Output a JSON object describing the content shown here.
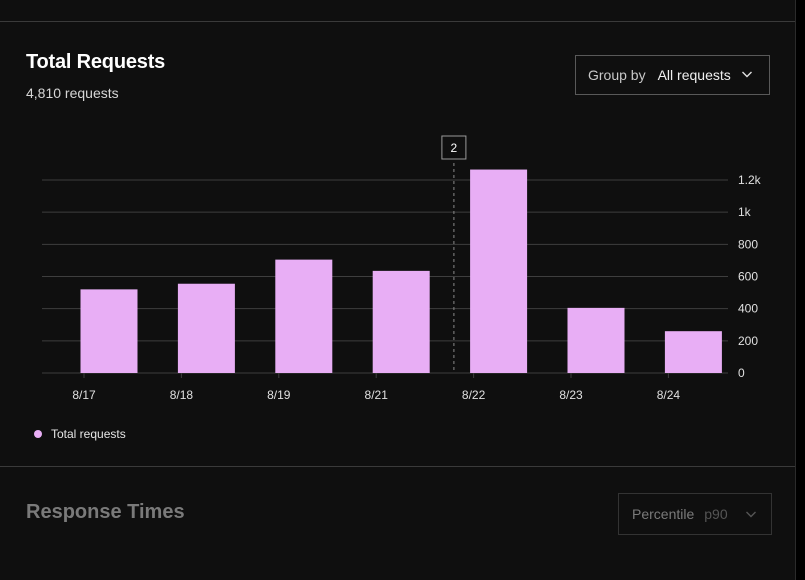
{
  "requests_panel": {
    "title": "Total Requests",
    "subtitle": "4,810 requests",
    "group_by": {
      "label": "Group by",
      "value": "All requests"
    }
  },
  "response_panel": {
    "title": "Response Times",
    "percentile": {
      "label": "Percentile",
      "value": "p90"
    }
  },
  "chart_data": {
    "type": "bar",
    "categories": [
      "8/17",
      "8/18",
      "8/19",
      "8/21",
      "8/22",
      "8/23",
      "8/24"
    ],
    "series": [
      {
        "name": "Total requests",
        "values": [
          520,
          555,
          705,
          635,
          1265,
          405,
          260
        ]
      }
    ],
    "ylim": [
      0,
      1200
    ],
    "y_ticks": [
      {
        "value": 0,
        "label": "0"
      },
      {
        "value": 200,
        "label": "200"
      },
      {
        "value": 400,
        "label": "400"
      },
      {
        "value": 600,
        "label": "600"
      },
      {
        "value": 800,
        "label": "800"
      },
      {
        "value": 1000,
        "label": "1k"
      },
      {
        "value": 1200,
        "label": "1.2k"
      }
    ],
    "y_axis_side": "right",
    "grid": true,
    "legend_placement": "bottom-left",
    "hover_marker": {
      "between": [
        "8/21",
        "8/22"
      ],
      "label": "2"
    },
    "colors": {
      "bar": "#e8aef5",
      "grid": "#3e3e3e",
      "tick_text": "#e0e0e0"
    }
  }
}
